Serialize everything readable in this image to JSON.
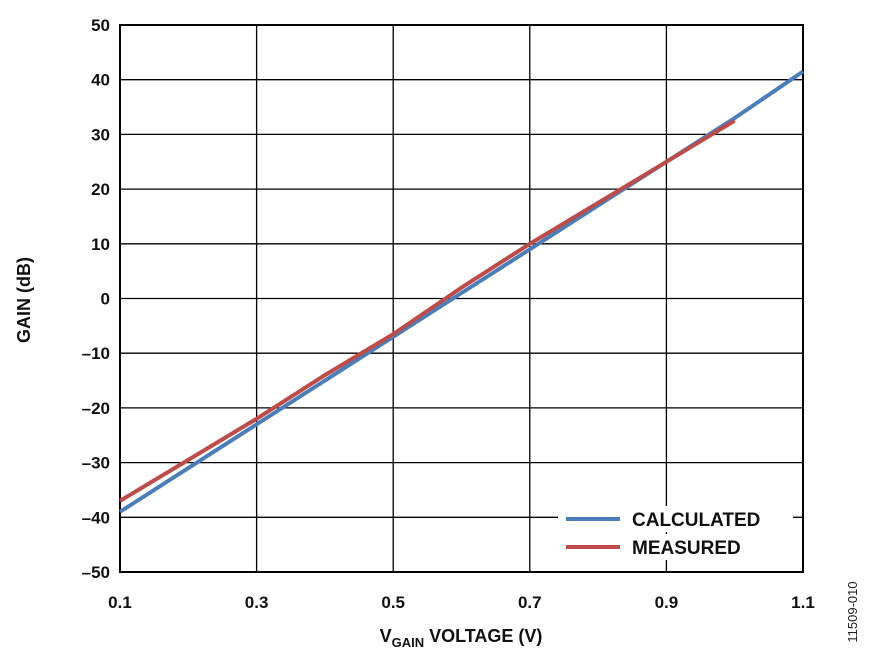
{
  "chart_data": {
    "type": "line",
    "title": "",
    "xlabel_main": "V",
    "xlabel_sub": "GAIN",
    "xlabel_rest": " VOLTAGE (V)",
    "ylabel": "GAIN (dB)",
    "xlim": [
      0.1,
      1.1
    ],
    "ylim": [
      -50,
      50
    ],
    "x_ticks": [
      0.1,
      0.3,
      0.5,
      0.7,
      0.9,
      1.1
    ],
    "x_tick_labels": [
      "0.1",
      "0.3",
      "0.5",
      "0.7",
      "0.9",
      "1.1"
    ],
    "y_ticks": [
      -50,
      -40,
      -30,
      -20,
      -10,
      0,
      10,
      20,
      30,
      40,
      50
    ],
    "y_tick_labels": [
      "–50",
      "–40",
      "–30",
      "–20",
      "–10",
      "0",
      "10",
      "20",
      "30",
      "40",
      "50"
    ],
    "grid": true,
    "legend_position": "bottom-right",
    "series": [
      {
        "name": "CALCULATED",
        "color": "#4a7ebb",
        "x": [
          0.1,
          0.2,
          0.3,
          0.4,
          0.5,
          0.6,
          0.7,
          0.8,
          0.9,
          1.0,
          1.1
        ],
        "y": [
          -39.0,
          -31.0,
          -23.0,
          -15.0,
          -7.0,
          1.0,
          9.0,
          17.0,
          25.0,
          33.0,
          41.5
        ]
      },
      {
        "name": "MEASURED",
        "color": "#be4b48",
        "x": [
          0.1,
          0.2,
          0.3,
          0.4,
          0.5,
          0.6,
          0.7,
          0.8,
          0.9,
          1.0
        ],
        "y": [
          -37.0,
          -29.5,
          -22.0,
          -14.0,
          -6.5,
          2.0,
          10.0,
          17.5,
          25.0,
          32.5
        ]
      }
    ]
  },
  "figure_id": "11509-010"
}
